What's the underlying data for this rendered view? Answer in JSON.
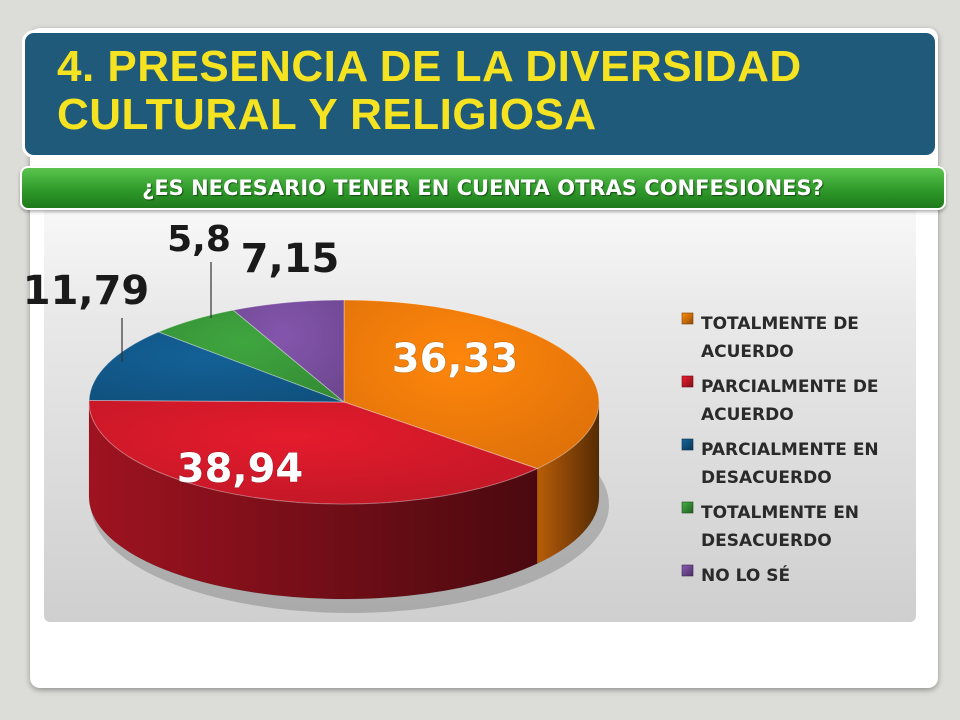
{
  "slide": {
    "title": "4. PRESENCIA DE LA DIVERSIDAD CULTURAL Y RELIGIOSA",
    "question": "¿ES NECESARIO TENER EN CUENTA OTRAS CONFESIONES?"
  },
  "colors": {
    "title_bar": "#1f5a7a",
    "title_text": "#f5e321",
    "question_bar": "#2f9a2a"
  },
  "chart_data": {
    "type": "pie",
    "style": "3d",
    "legend_position": "right",
    "series": [
      {
        "label": "TOTALMENTE DE ACUERDO",
        "value": 36.33,
        "display": "36,33",
        "color": "#f57c0a"
      },
      {
        "label": "PARCIALMENTE DE ACUERDO",
        "value": 38.94,
        "display": "38,94",
        "color": "#d4192a"
      },
      {
        "label": "PARCIALMENTE EN DESACUERDO",
        "value": 11.79,
        "display": "11,79",
        "color": "#125a8c"
      },
      {
        "label": "TOTALMENTE EN DESACUERDO",
        "value": 5.8,
        "display": "5,8",
        "color": "#3a9a3a"
      },
      {
        "label": "NO LO SÉ",
        "value": 7.15,
        "display": "7,15",
        "color": "#7a4fa0"
      }
    ]
  }
}
